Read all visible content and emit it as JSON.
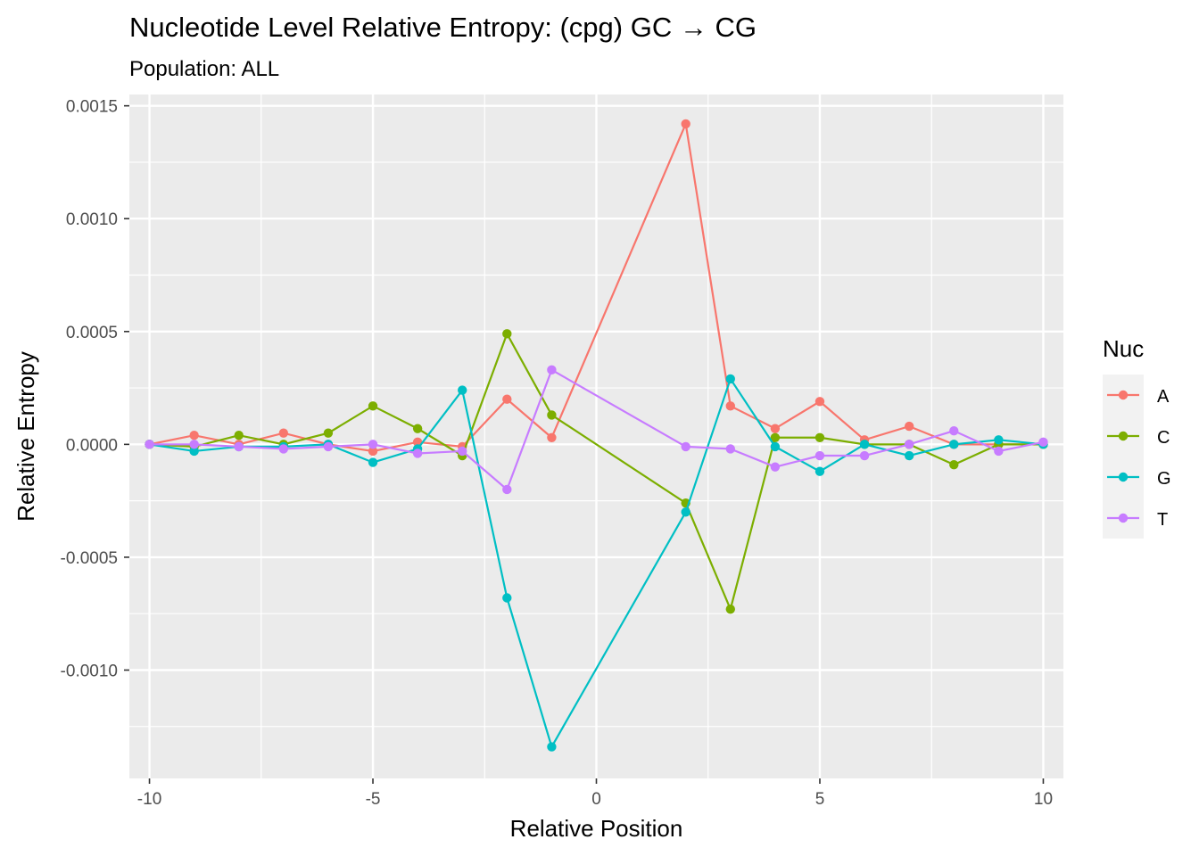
{
  "chart_data": {
    "type": "line",
    "title": "Nucleotide Level Relative Entropy: (cpg) GC → CG",
    "subtitle": "Population: ALL",
    "xlabel": "Relative Position",
    "ylabel": "Relative Entropy",
    "xlim": [
      -10.45,
      10.45
    ],
    "ylim": [
      -0.00148,
      0.00155
    ],
    "x_ticks": [
      -10,
      -5,
      0,
      5,
      10
    ],
    "x_tick_labels": [
      "-10",
      "-5",
      "0",
      "5",
      "10"
    ],
    "y_ticks": [
      -0.001,
      -0.0005,
      0.0,
      0.0005,
      0.001,
      0.0015
    ],
    "y_tick_labels": [
      "-0.0010",
      "-0.0005",
      "0.0000",
      "0.0005",
      "0.0010",
      "0.0015"
    ],
    "grid": true,
    "legend_title": "Nuc",
    "legend_position": "right",
    "x": [
      -10,
      -9,
      -8,
      -7,
      -6,
      -5,
      -4,
      -3,
      -2,
      -1,
      2,
      3,
      4,
      5,
      6,
      7,
      8,
      9,
      10
    ],
    "series": [
      {
        "name": "A",
        "color": "#F8766D",
        "values": [
          0.0,
          4e-05,
          0.0,
          5e-05,
          0.0,
          -3e-05,
          1e-05,
          -1e-05,
          0.0002,
          3e-05,
          0.00142,
          0.00017,
          7e-05,
          0.00019,
          2e-05,
          8e-05,
          0.0,
          0.0,
          0.0
        ]
      },
      {
        "name": "C",
        "color": "#7CAE00",
        "values": [
          0.0,
          -1e-05,
          4e-05,
          0.0,
          5e-05,
          0.00017,
          7e-05,
          -5e-05,
          0.00049,
          0.00013,
          -0.00026,
          -0.00073,
          3e-05,
          3e-05,
          0.0,
          0.0,
          -9e-05,
          0.0,
          0.0
        ]
      },
      {
        "name": "G",
        "color": "#00BFC4",
        "values": [
          0.0,
          -3e-05,
          -1e-05,
          -1e-05,
          0.0,
          -8e-05,
          -2e-05,
          0.00024,
          -0.00068,
          -0.00134,
          -0.0003,
          0.00029,
          -1e-05,
          -0.00012,
          0.0,
          -5e-05,
          0.0,
          2e-05,
          0.0
        ]
      },
      {
        "name": "T",
        "color": "#C77CFF",
        "values": [
          0.0,
          0.0,
          -1e-05,
          -2e-05,
          -1e-05,
          0.0,
          -4e-05,
          -3e-05,
          -0.0002,
          0.00033,
          -1e-05,
          -2e-05,
          -0.0001,
          -5e-05,
          -5e-05,
          0.0,
          6e-05,
          -3e-05,
          1e-05
        ]
      }
    ]
  },
  "colors": {
    "panel_background": "#EBEBEB",
    "gridline": "#FFFFFF",
    "tick_text": "#4D4D4D",
    "text": "#000000"
  }
}
